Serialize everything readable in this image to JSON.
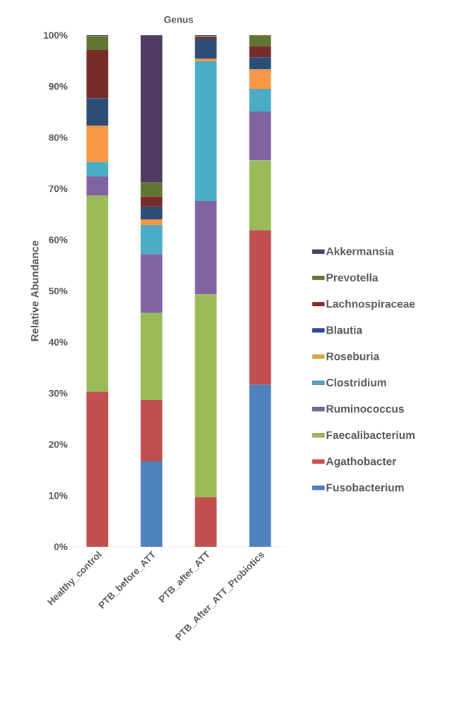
{
  "chart_data": {
    "type": "bar",
    "stacked": true,
    "title": "Genus",
    "ylabel": "Relative Abundance",
    "categories": [
      "Healthy_control",
      "PTB_before_ATT",
      "PTB_after_ATT",
      "PTB_After_ATT_Probiotics"
    ],
    "series": [
      {
        "name": "Fusobacterium",
        "color": "#4f81bd",
        "values": [
          0,
          16.7,
          0,
          31.7
        ]
      },
      {
        "name": "Agathobacter",
        "color": "#c0504d",
        "values": [
          30.3,
          12.0,
          9.7,
          30.2
        ]
      },
      {
        "name": "Faecalibacterium",
        "color": "#9bbb59",
        "values": [
          38.3,
          17.0,
          39.6,
          13.6
        ]
      },
      {
        "name": "Ruminococcus",
        "color": "#8064a2",
        "values": [
          3.8,
          11.5,
          18.3,
          9.6
        ]
      },
      {
        "name": "Clostridium",
        "color": "#4bacc6",
        "values": [
          2.8,
          5.7,
          27.3,
          4.4
        ]
      },
      {
        "name": "Roseburia",
        "color": "#f79646",
        "values": [
          7.1,
          1.1,
          0.5,
          3.8
        ]
      },
      {
        "name": "Blautia",
        "color": "#2c4d75",
        "values": [
          5.4,
          2.5,
          3.9,
          2.4
        ]
      },
      {
        "name": "Lachnospiraceae",
        "color": "#772c2a",
        "values": [
          9.4,
          2.0,
          0.4,
          2.2
        ]
      },
      {
        "name": "Prevotella",
        "color": "#5f7530",
        "values": [
          2.7,
          2.7,
          0.1,
          2.1
        ]
      },
      {
        "name": "Akkermansia",
        "color": "#4d3b62",
        "values": [
          0.2,
          28.8,
          0.2,
          0
        ]
      }
    ],
    "ylim": [
      0,
      100
    ],
    "yticks": [
      {
        "value": 0,
        "label": "0%"
      },
      {
        "value": 10,
        "label": "10%"
      },
      {
        "value": 20,
        "label": "20%"
      },
      {
        "value": 30,
        "label": "30%"
      },
      {
        "value": 40,
        "label": "40%"
      },
      {
        "value": 50,
        "label": "50%"
      },
      {
        "value": 60,
        "label": "60%"
      },
      {
        "value": 70,
        "label": "70%"
      },
      {
        "value": 80,
        "label": "80%"
      },
      {
        "value": 90,
        "label": "90%"
      },
      {
        "value": 100,
        "label": "100%"
      }
    ],
    "legend": "right"
  }
}
